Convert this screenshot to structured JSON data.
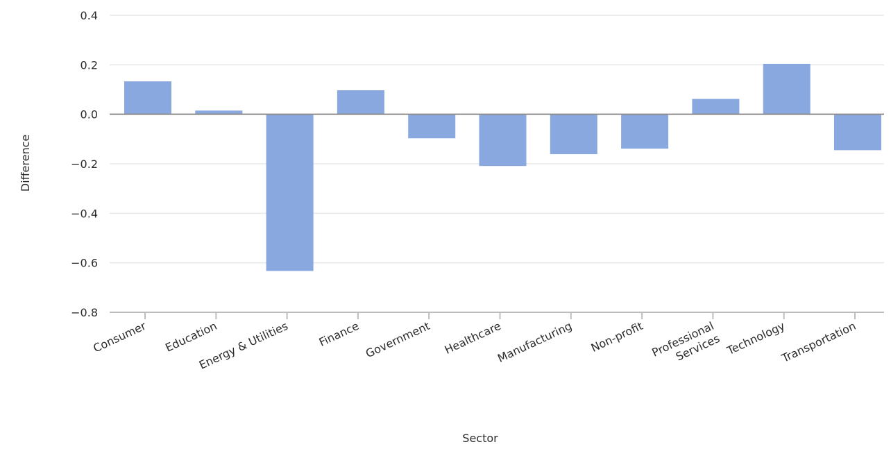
{
  "chart_data": {
    "type": "bar",
    "categories": [
      "Consumer",
      "Education",
      "Energy & Utilities",
      "Finance",
      "Government",
      "Healthcare",
      "Manufacturing",
      "Non-profit",
      "Professional Services",
      "Technology",
      "Transportation"
    ],
    "category_label_lines": [
      [
        "Consumer"
      ],
      [
        "Education"
      ],
      [
        "Energy & Utilities"
      ],
      [
        "Finance"
      ],
      [
        "Government"
      ],
      [
        "Healthcare"
      ],
      [
        "Manufacturing"
      ],
      [
        "Non-profit"
      ],
      [
        "Professional",
        "Services"
      ],
      [
        "Technology"
      ],
      [
        "Transportation"
      ]
    ],
    "values": [
      0.133,
      0.015,
      -0.633,
      0.097,
      -0.097,
      -0.209,
      -0.161,
      -0.139,
      0.062,
      0.204,
      -0.145
    ],
    "title": "",
    "xlabel": "Sector",
    "ylabel": "Difference",
    "ylim": [
      -0.8,
      0.4
    ],
    "yticks": [
      -0.8,
      -0.6,
      -0.4,
      -0.2,
      0.0,
      0.2,
      0.4
    ],
    "ytick_labels": [
      "−0.8",
      "−0.6",
      "−0.4",
      "−0.2",
      "0.0",
      "0.2",
      "0.4"
    ],
    "grid": true,
    "legend": "none",
    "colors": {
      "bar": "#8aa8e0",
      "grid": "#e8e8e8",
      "zero_line": "#8c8c8c",
      "axis": "#bdbdbd",
      "text": "#2b2b2b"
    }
  }
}
